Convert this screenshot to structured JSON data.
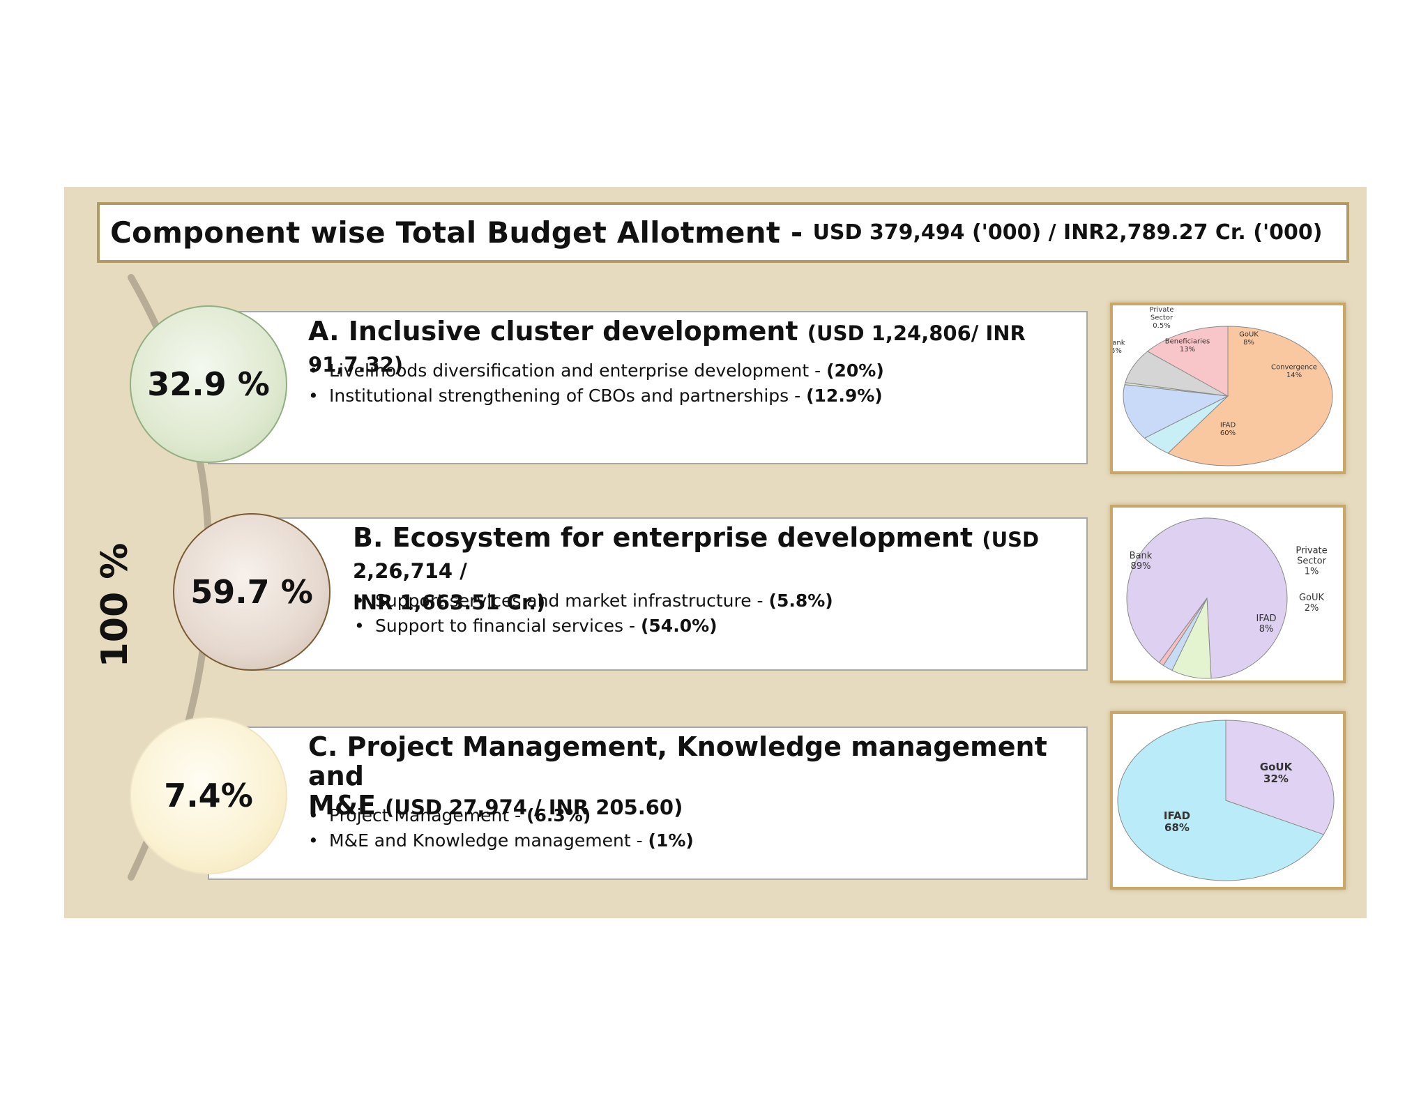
{
  "title": {
    "main": "Component wise Total Budget Allotment -",
    "sub": "USD 379,494 ('000) / INR2,789.27  Cr. ('000)"
  },
  "side_label": "100 %",
  "components": [
    {
      "percent": "32.9 %",
      "heading": "A. Inclusive cluster development",
      "amount": "(USD 1,24,806/ INR 91,7.32)",
      "bullets": [
        {
          "text": "Livelihoods diversification and enterprise development - ",
          "value": "(20%)"
        },
        {
          "text": "Institutional strengthening of CBOs and partnerships - ",
          "value": "(12.9%)"
        }
      ]
    },
    {
      "percent": "59.7 %",
      "heading": "B. Ecosystem for enterprise development",
      "amount": "(USD 2,26,714 /",
      "amount_line2": "INR 1,663.51 Cr.)",
      "bullets": [
        {
          "text": "Support services and market infrastructure - ",
          "value": "(5.8%)"
        },
        {
          "text": "Support to financial services - ",
          "value": "(54.0%)"
        }
      ]
    },
    {
      "percent": "7.4%",
      "heading": "C. Project Management, Knowledge management and",
      "heading_line2": "M&E",
      "amount": "(USD 27,974 / INR 205.60)",
      "bullets": [
        {
          "text": "Project Management - ",
          "value": "(6.3%)"
        },
        {
          "text": "M&E and Knowledge management - ",
          "value": "(1%)"
        }
      ]
    }
  ],
  "chart_data": [
    {
      "type": "pie",
      "title": "",
      "slices": [
        {
          "label": "IFAD",
          "value": 60,
          "value_label": "60%",
          "color": "#f9c7a0"
        },
        {
          "label": "Bank",
          "value": 5,
          "value_label": "5%",
          "color": "#c8eef6"
        },
        {
          "label": "Beneficiaries",
          "value": 13,
          "value_label": "13%",
          "color": "#c9d9f8"
        },
        {
          "label": "Private Sector",
          "value": 0.5,
          "value_label": "0.5%",
          "color": "#d8e8ce"
        },
        {
          "label": "GoUK",
          "value": 8,
          "value_label": "8%",
          "color": "#d5d5d5"
        },
        {
          "label": "Convergence",
          "value": 14,
          "value_label": "14%",
          "color": "#f8c6c8"
        }
      ]
    },
    {
      "type": "pie",
      "title": "",
      "slices": [
        {
          "label": "Bank",
          "value": 89,
          "value_label": "89%",
          "color": "#ddd0f0"
        },
        {
          "label": "IFAD",
          "value": 8,
          "value_label": "8%",
          "color": "#e4f4d0"
        },
        {
          "label": "GoUK",
          "value": 2,
          "value_label": "2%",
          "color": "#c6dcf4"
        },
        {
          "label": "Private Sector",
          "value": 1,
          "value_label": "1%",
          "color": "#f6c0c0"
        }
      ]
    },
    {
      "type": "pie",
      "title": "",
      "slices": [
        {
          "label": "GoUK",
          "value": 32,
          "value_label": "32%",
          "color": "#e0d2f2"
        },
        {
          "label": "IFAD",
          "value": 68,
          "value_label": "68%",
          "color": "#b9ecf8"
        }
      ]
    }
  ]
}
